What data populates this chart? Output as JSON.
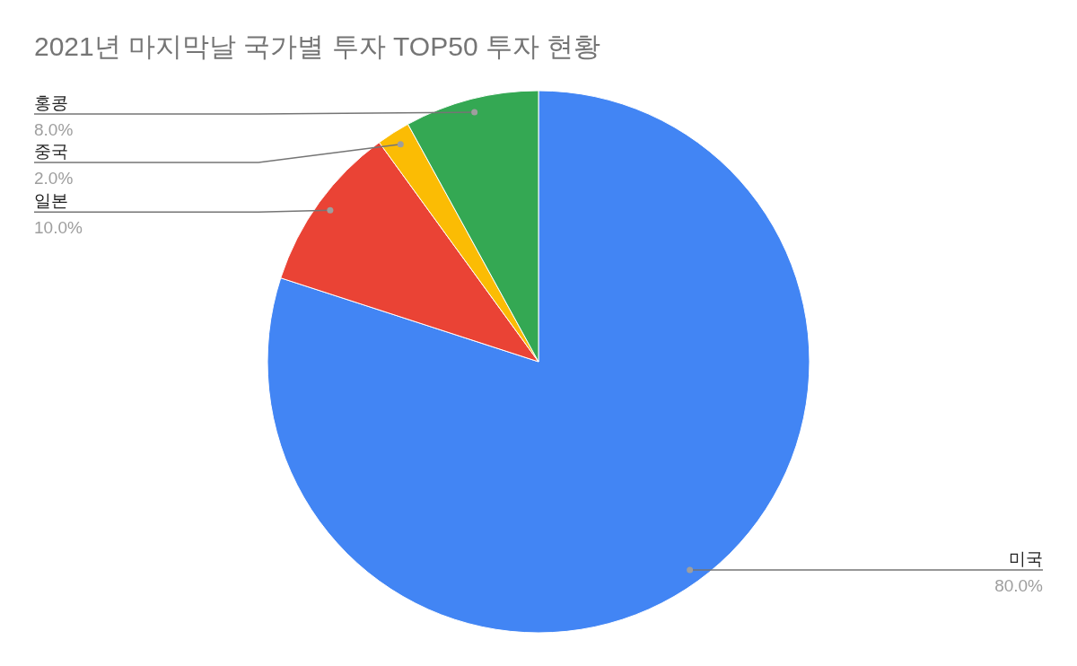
{
  "chart_data": {
    "type": "pie",
    "title": "2021년 마지막날 국가별 투자 TOP50 투자 현황",
    "categories": [
      "미국",
      "일본",
      "중국",
      "홍콩"
    ],
    "values": [
      80,
      10,
      2,
      8
    ],
    "value_labels": [
      "80.0%",
      "10.0%",
      "2.0%",
      "8.0%"
    ],
    "colors": [
      "#4285f4",
      "#ea4335",
      "#fbbc04",
      "#34a853"
    ]
  }
}
